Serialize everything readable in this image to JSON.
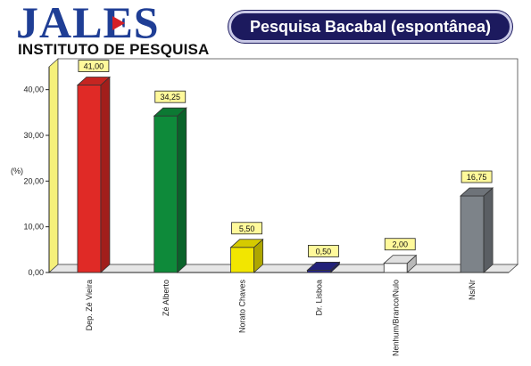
{
  "logo": {
    "brand": "JALES",
    "subtitle": "INSTITUTO DE PESQUISA"
  },
  "chart_data": {
    "type": "bar",
    "title": "Pesquisa Bacabal (espontânea)",
    "ylabel": "(%)",
    "xlabel": "",
    "ylim": [
      0,
      45
    ],
    "yticks": [
      "0,00",
      "10,00",
      "20,00",
      "30,00",
      "40,00"
    ],
    "yticks_values": [
      0,
      10,
      20,
      30,
      40
    ],
    "categories": [
      "Dep. Zé Vieira",
      "Zé Alberto",
      "Norato Chaves",
      "Dr. Lisboa",
      "Nenhum/Branco/Nulo",
      "Ns/Nr"
    ],
    "values": [
      41.0,
      34.25,
      5.5,
      0.5,
      2.0,
      16.75
    ],
    "value_labels": [
      "41,00",
      "34,25",
      "5,50",
      "0,50",
      "2,00",
      "16,75"
    ],
    "colors": [
      "#e02a26",
      "#0e8a3a",
      "#f2e600",
      "#27268a",
      "#ffffff",
      "#7d8389"
    ],
    "grid": false,
    "legend": "none"
  }
}
